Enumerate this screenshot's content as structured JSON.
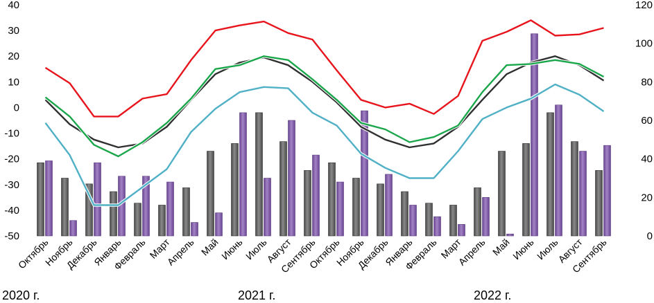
{
  "chart_data": {
    "type": "bar+line",
    "categories": [
      "Октябрь",
      "Ноябрь",
      "Декабрь",
      "Январь",
      "Февраль",
      "Март",
      "Апрель",
      "Май",
      "Июнь",
      "Июль",
      "Август",
      "Сентябрь",
      "Октябрь",
      "Ноябрь",
      "Декабрь",
      "Январь",
      "Февраль",
      "Март",
      "Апрель",
      "Май",
      "Июнь",
      "Июль",
      "Август",
      "Сентябрь"
    ],
    "year_labels": [
      "2020 г.",
      "2021 г.",
      "2022 г."
    ],
    "y_left": {
      "min": -50,
      "max": 40,
      "ticks": [
        -50,
        -40,
        -30,
        -20,
        -10,
        0,
        10,
        20,
        30,
        40
      ]
    },
    "y_right": {
      "min": 0,
      "max": 120,
      "ticks": [
        0,
        20,
        40,
        60,
        80,
        100,
        120
      ]
    },
    "colors": {
      "bar_gray": "#6e6e6e",
      "bar_purple": "#8a64b0",
      "line_red": "#e8141c",
      "line_black": "#303030",
      "line_green": "#1aa64a",
      "line_blue": "#4fb0c6"
    },
    "bars": [
      {
        "name": "gray",
        "axis": "right",
        "values": [
          38,
          30,
          27,
          23,
          17,
          16,
          25,
          44,
          48,
          64,
          49,
          34,
          38,
          30,
          27,
          23,
          17,
          16,
          25,
          44,
          48,
          64,
          49,
          34
        ]
      },
      {
        "name": "purple",
        "axis": "right",
        "values": [
          39,
          8,
          38,
          31,
          31,
          28,
          7,
          12,
          64,
          30,
          60,
          42,
          28,
          65,
          32,
          16,
          10,
          6,
          20,
          1,
          105,
          68,
          44,
          47
        ]
      }
    ],
    "series": [
      {
        "name": "red",
        "axis": "left",
        "values": [
          15.5,
          9.5,
          -3.5,
          -3.5,
          3.5,
          5.2,
          18.5,
          30,
          32,
          33.5,
          29,
          26.5,
          14.5,
          3,
          0,
          1.5,
          -2.5,
          4.5,
          26,
          29.5,
          34,
          28,
          28.5,
          31
        ]
      },
      {
        "name": "black",
        "axis": "left",
        "values": [
          3,
          -6.5,
          -12.5,
          -15.5,
          -14,
          -7.5,
          3,
          13,
          17.5,
          19.5,
          16.5,
          10,
          2,
          -7.5,
          -12.5,
          -15.5,
          -14,
          -7.5,
          3,
          13,
          17.5,
          20,
          16.5,
          10.5
        ]
      },
      {
        "name": "green",
        "axis": "left",
        "values": [
          4,
          -3.5,
          -14.5,
          -19,
          -13.5,
          -6,
          3.5,
          15,
          16.5,
          20,
          18.5,
          11,
          3,
          -6,
          -8.5,
          -13.5,
          -11.5,
          -7,
          6,
          16.5,
          17,
          18.5,
          17,
          12
        ]
      },
      {
        "name": "blue",
        "axis": "left",
        "values": [
          -6,
          -18.5,
          -38,
          -38,
          -31,
          -24,
          -9.5,
          -0.5,
          6,
          8,
          7.5,
          -2,
          -7,
          -18,
          -23.5,
          -27.5,
          -27.5,
          -17,
          -4.5,
          0,
          3.5,
          9,
          5,
          -1.5
        ]
      }
    ]
  }
}
